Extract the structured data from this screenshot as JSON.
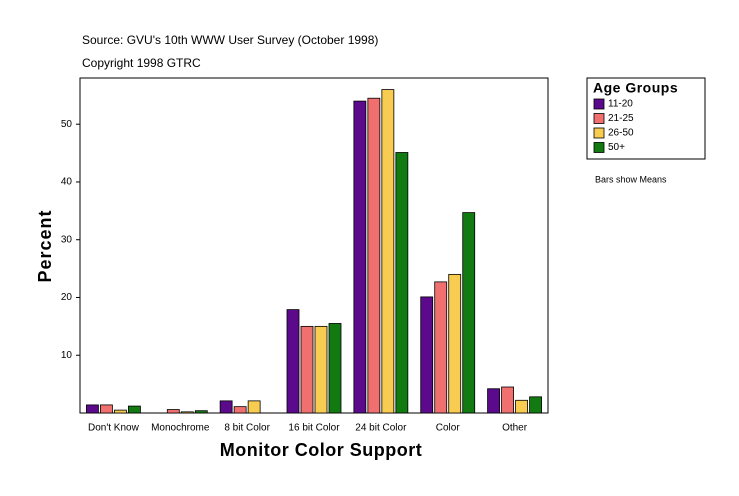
{
  "chart_data": {
    "type": "bar",
    "title": "Source: GVU's 10th WWW User Survey (October 1998)",
    "subtitle": "Copyright 1998 GTRC",
    "x_label": "Monitor Color Support",
    "y_label": "Percent",
    "legend_title": "Age Groups",
    "note": "Bars show Means",
    "categories": [
      "Don't Know",
      "Monochrome",
      "8 bit Color",
      "16 bit Color",
      "24 bit Color",
      "Color",
      "Other"
    ],
    "series": [
      {
        "name": "11-20",
        "color": "#5c0a8c",
        "values": [
          1.4,
          0,
          2.1,
          17.9,
          54.0,
          20.1,
          4.2
        ]
      },
      {
        "name": "21-25",
        "color": "#f07070",
        "values": [
          1.4,
          0.6,
          1.1,
          15.0,
          54.5,
          22.7,
          4.5
        ]
      },
      {
        "name": "26-50",
        "color": "#f8cc50",
        "values": [
          0.5,
          0.2,
          2.1,
          15.0,
          56.0,
          24.0,
          2.2
        ]
      },
      {
        "name": "50+",
        "color": "#117a11",
        "values": [
          1.2,
          0.4,
          0,
          15.5,
          45.1,
          34.7,
          2.8
        ]
      }
    ],
    "ylim": [
      0,
      58
    ],
    "yticks": [
      10,
      20,
      30,
      40,
      50
    ],
    "legend_position": "right"
  }
}
